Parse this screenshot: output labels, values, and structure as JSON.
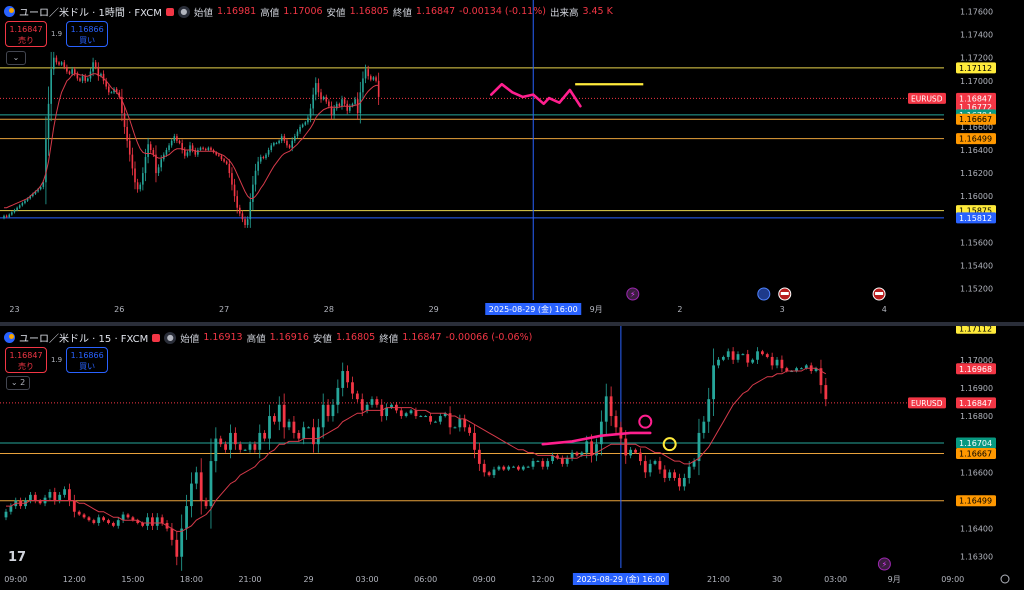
{
  "panes": [
    {
      "title": "ユーロ／米ドル · 1時間 · FXCM",
      "ohlc": {
        "open_label": "始値",
        "open": "1.16981",
        "high_label": "高値",
        "high": "1.17006",
        "low_label": "安値",
        "low": "1.16805",
        "close_label": "終値",
        "close": "1.16847",
        "change": "-0.00134 (-0.11%)",
        "volume_label": "出来高",
        "volume": "3.45 K"
      },
      "trade": {
        "sell_price": "1.16847",
        "sell_label": "売り",
        "spread": "1.9",
        "buy_price": "1.16866",
        "buy_label": "買い"
      },
      "collapse_label": "⌄"
    },
    {
      "title": "ユーロ／米ドル · 15 · FXCM",
      "ohlc": {
        "open_label": "始値",
        "open": "1.16913",
        "high_label": "高値",
        "high": "1.16916",
        "low_label": "安値",
        "low": "1.16805",
        "close_label": "終値",
        "close": "1.16847",
        "change": "-0.00066 (-0.06%)"
      },
      "trade": {
        "sell_price": "1.16847",
        "sell_label": "売り",
        "spread": "1.9",
        "buy_price": "1.16866",
        "buy_label": "買い"
      },
      "collapse_label": "⌄ 2"
    }
  ],
  "colors": {
    "up": "#26a69a",
    "down": "#f23645",
    "ma": "#d63a4a",
    "crosshair": "#2962ff",
    "drawing": "#ff1f8e",
    "yellow": "#ffeb3b",
    "bg": "#000000"
  },
  "tv_logo": "17",
  "chart_data": [
    {
      "type": "candlestick",
      "name": "EURUSD 1H",
      "ylim": [
        1.151,
        1.177
      ],
      "y_ticks": [
        "1.17600",
        "1.17400",
        "1.17200",
        "1.17000",
        "1.16800",
        "1.16600",
        "1.16400",
        "1.16200",
        "1.16000",
        "1.15800",
        "1.15600",
        "1.15400",
        "1.15200"
      ],
      "x_labels": [
        {
          "label": "23",
          "i": 4
        },
        {
          "label": "26",
          "i": 44
        },
        {
          "label": "27",
          "i": 84
        },
        {
          "label": "28",
          "i": 124
        },
        {
          "label": "29",
          "i": 164
        },
        {
          "label": "9月",
          "i": 226
        },
        {
          "label": "2",
          "i": 258
        },
        {
          "label": "3",
          "i": 297
        },
        {
          "label": "4",
          "i": 336
        }
      ],
      "crosshair_i": 202,
      "crosshair_label": "2025-08-29 (金)  16:00",
      "closes": [
        1.1583,
        1.1582,
        1.1584,
        1.1586,
        1.1588,
        1.159,
        1.1592,
        1.1594,
        1.1596,
        1.1598,
        1.16,
        1.1602,
        1.1604,
        1.1606,
        1.1608,
        1.1612,
        1.165,
        1.168,
        1.171,
        1.172,
        1.1716,
        1.1714,
        1.1716,
        1.1712,
        1.1708,
        1.1706,
        1.171,
        1.1706,
        1.1702,
        1.17,
        1.1704,
        1.17,
        1.1702,
        1.1708,
        1.1716,
        1.1712,
        1.1704,
        1.1706,
        1.17,
        1.1695,
        1.169,
        1.169,
        1.1693,
        1.169,
        1.1686,
        1.1672,
        1.166,
        1.1648,
        1.1636,
        1.1624,
        1.1612,
        1.1606,
        1.161,
        1.162,
        1.1634,
        1.1645,
        1.164,
        1.1636,
        1.162,
        1.1625,
        1.1632,
        1.1636,
        1.164,
        1.1644,
        1.1648,
        1.1652,
        1.1648,
        1.1646,
        1.164,
        1.1635,
        1.1638,
        1.1644,
        1.164,
        1.1636,
        1.164,
        1.1642,
        1.1641,
        1.164,
        1.1642,
        1.164,
        1.1638,
        1.1636,
        1.1635,
        1.1632,
        1.163,
        1.1628,
        1.162,
        1.161,
        1.16,
        1.159,
        1.1585,
        1.158,
        1.1575,
        1.158,
        1.1595,
        1.161,
        1.1622,
        1.163,
        1.1634,
        1.1633,
        1.1636,
        1.164,
        1.1644,
        1.1646,
        1.1646,
        1.1648,
        1.1652,
        1.1648,
        1.1644,
        1.1642,
        1.1648,
        1.1652,
        1.1656,
        1.166,
        1.1662,
        1.1664,
        1.1668,
        1.1676,
        1.1688,
        1.1698,
        1.169,
        1.1684,
        1.1686,
        1.1682,
        1.1678,
        1.167,
        1.1676,
        1.168,
        1.1678,
        1.1684,
        1.168,
        1.1674,
        1.1678,
        1.168,
        1.1684,
        1.1672,
        1.169,
        1.1702,
        1.171,
        1.1704,
        1.1701,
        1.1703,
        1.17,
        1.1686
      ],
      "ma": [
        1.159,
        1.159,
        1.1591,
        1.1592,
        1.1593,
        1.1594,
        1.1595,
        1.1596,
        1.1597,
        1.1598,
        1.16,
        1.1602,
        1.1604,
        1.1606,
        1.1609,
        1.1613,
        1.162,
        1.163,
        1.1645,
        1.166,
        1.1672,
        1.1682,
        1.169,
        1.1695,
        1.17,
        1.1702,
        1.1705,
        1.1706,
        1.1706,
        1.1705,
        1.1705,
        1.1704,
        1.1704,
        1.1705,
        1.1706,
        1.1706,
        1.1705,
        1.1704,
        1.1702,
        1.17,
        1.1697,
        1.1694,
        1.1692,
        1.169,
        1.1687,
        1.1683,
        1.1678,
        1.1672,
        1.1666,
        1.1659,
        1.1652,
        1.1646,
        1.1641,
        1.1638,
        1.1637,
        1.1637,
        1.1637,
        1.1636,
        1.1634,
        1.1633,
        1.1633,
        1.1634,
        1.1635,
        1.1636,
        1.1638,
        1.164,
        1.1641,
        1.1641,
        1.1641,
        1.164,
        1.164,
        1.164,
        1.164,
        1.1639,
        1.1639,
        1.1639,
        1.1639,
        1.1639,
        1.1639,
        1.1639,
        1.1639,
        1.1638,
        1.1637,
        1.1636,
        1.1635,
        1.1633,
        1.1631,
        1.1628,
        1.1624,
        1.1619,
        1.1614,
        1.1609,
        1.1604,
        1.16,
        1.1598,
        1.1598,
        1.16,
        1.1603,
        1.1607,
        1.161,
        1.1614,
        1.1618,
        1.1622,
        1.1626,
        1.1629,
        1.1632,
        1.1635,
        1.1637,
        1.1638,
        1.1639,
        1.1641,
        1.1643,
        1.1645,
        1.1648,
        1.165,
        1.1653,
        1.1656,
        1.1659,
        1.1663,
        1.1668,
        1.1671,
        1.1673,
        1.1675,
        1.1676,
        1.1677,
        1.1677,
        1.1677,
        1.1677,
        1.1677,
        1.1678,
        1.1678,
        1.1678,
        1.1678,
        1.1678,
        1.1679,
        1.1679,
        1.1681,
        1.1684,
        1.1688,
        1.1691,
        1.1693,
        1.1695,
        1.1696,
        1.1696
      ],
      "hlines": [
        {
          "y": 1.17112,
          "color": "#e8d44d",
          "label": "1.17112",
          "label_bg": "#ffeb3b",
          "label_fg": "#000000",
          "style": "solid"
        },
        {
          "y": 1.16847,
          "color": "#f23645",
          "label": "1.16847",
          "label_bg": "#f23645",
          "label_fg": "#ffffff",
          "style": "dotted",
          "tag": "EURUSD"
        },
        {
          "y": 1.16772,
          "color": "#f23645",
          "label": "1.16772",
          "label_bg": "#f23645",
          "label_fg": "#ffffff",
          "style": "none"
        },
        {
          "y": 1.16704,
          "color": "#26a69a",
          "label": "1.16704",
          "label_bg": "#089981",
          "label_fg": "#ffffff",
          "style": "solid"
        },
        {
          "y": 1.16667,
          "color": "#e8a23c",
          "label": "1.16667",
          "label_bg": "#ff9800",
          "label_fg": "#000000",
          "style": "solid"
        },
        {
          "y": 1.16499,
          "color": "#e8a23c",
          "label": "1.16499",
          "label_bg": "#ff9800",
          "label_fg": "#000000",
          "style": "solid"
        },
        {
          "y": 1.15875,
          "color": "#e8d44d",
          "label": "1.15875",
          "label_bg": "#ffeb3b",
          "label_fg": "#000000",
          "style": "solid"
        },
        {
          "y": 1.15812,
          "color": "#2962ff",
          "label": "1.15812",
          "label_bg": "#2962ff",
          "label_fg": "#ffffff",
          "style": "solid"
        }
      ],
      "drawing": [
        [
          186,
          1.1688
        ],
        [
          190,
          1.1697
        ],
        [
          194,
          1.169
        ],
        [
          198,
          1.1686
        ],
        [
          202,
          1.1688
        ],
        [
          206,
          1.168
        ],
        [
          208,
          1.1685
        ],
        [
          212,
          1.1681
        ],
        [
          216,
          1.1692
        ],
        [
          220,
          1.1678
        ]
      ],
      "yellow_segment": {
        "i0": 218,
        "i1": 244,
        "y": 1.1697
      },
      "events": [
        {
          "i": 240,
          "kind": "lightning"
        },
        {
          "i": 290,
          "kind": "globe"
        },
        {
          "i": 298,
          "kind": "flag"
        },
        {
          "i": 334,
          "kind": "flag"
        }
      ]
    },
    {
      "type": "candlestick",
      "name": "EURUSD 15",
      "ylim": [
        1.1626,
        1.1712
      ],
      "y_ticks": [
        "1.17000",
        "1.16900",
        "1.16800",
        "1.16700",
        "1.16600",
        "1.16500",
        "1.16400",
        "1.16300"
      ],
      "x_labels": [
        {
          "label": "09:00",
          "i": 2
        },
        {
          "label": "12:00",
          "i": 14
        },
        {
          "label": "15:00",
          "i": 26
        },
        {
          "label": "18:00",
          "i": 38
        },
        {
          "label": "21:00",
          "i": 50
        },
        {
          "label": "29",
          "i": 62
        },
        {
          "label": "03:00",
          "i": 74
        },
        {
          "label": "06:00",
          "i": 86
        },
        {
          "label": "09:00",
          "i": 98
        },
        {
          "label": "12:00",
          "i": 110
        },
        {
          "label": "21:00",
          "i": 146
        },
        {
          "label": "30",
          "i": 158
        },
        {
          "label": "03:00",
          "i": 170
        },
        {
          "label": "9月",
          "i": 182
        },
        {
          "label": "09:00",
          "i": 194
        }
      ],
      "crosshair_i": 126,
      "crosshair_label": "2025-08-29 (金)  16:00",
      "closes": [
        1.1646,
        1.1648,
        1.165,
        1.1648,
        1.165,
        1.1652,
        1.165,
        1.1649,
        1.1651,
        1.1653,
        1.165,
        1.1652,
        1.1654,
        1.165,
        1.1646,
        1.1645,
        1.1644,
        1.1643,
        1.1642,
        1.1644,
        1.1643,
        1.1642,
        1.1641,
        1.1643,
        1.1645,
        1.1644,
        1.1643,
        1.1642,
        1.1641,
        1.1644,
        1.1641,
        1.1644,
        1.1642,
        1.164,
        1.1636,
        1.163,
        1.164,
        1.1648,
        1.1656,
        1.166,
        1.165,
        1.1648,
        1.1664,
        1.1672,
        1.167,
        1.1668,
        1.1674,
        1.167,
        1.1668,
        1.1668,
        1.167,
        1.1668,
        1.1674,
        1.1672,
        1.168,
        1.1678,
        1.1684,
        1.1676,
        1.1678,
        1.1674,
        1.1672,
        1.1676,
        1.1676,
        1.167,
        1.1676,
        1.1684,
        1.168,
        1.1684,
        1.169,
        1.1696,
        1.1692,
        1.1688,
        1.1686,
        1.1682,
        1.1684,
        1.1686,
        1.1684,
        1.168,
        1.1683,
        1.1684,
        1.1682,
        1.168,
        1.1681,
        1.1682,
        1.168,
        1.168,
        1.168,
        1.1678,
        1.1678,
        1.168,
        1.1681,
        1.1676,
        1.1676,
        1.1679,
        1.1676,
        1.1674,
        1.1668,
        1.1663,
        1.166,
        1.1659,
        1.1661,
        1.1662,
        1.1661,
        1.1662,
        1.1662,
        1.1661,
        1.1662,
        1.1662,
        1.1664,
        1.1664,
        1.1662,
        1.1664,
        1.1666,
        1.1665,
        1.1663,
        1.1665,
        1.1667,
        1.1666,
        1.1667,
        1.1671,
        1.1666,
        1.167,
        1.1678,
        1.1687,
        1.168,
        1.1676,
        1.1672,
        1.1666,
        1.1668,
        1.1667,
        1.1664,
        1.166,
        1.1663,
        1.1664,
        1.1661,
        1.1658,
        1.166,
        1.1658,
        1.1655,
        1.1658,
        1.1662,
        1.1664,
        1.1674,
        1.1678,
        1.1686,
        1.1698,
        1.17,
        1.1701,
        1.1703,
        1.17,
        1.1702,
        1.1702,
        1.1699,
        1.17,
        1.1703,
        1.1702,
        1.1701,
        1.1698,
        1.17,
        1.1697,
        1.1696,
        1.1696,
        1.1697,
        1.1697,
        1.1698,
        1.1696,
        1.1697,
        1.1691,
        1.1686
      ],
      "ma": [
        1.1648,
        1.1648,
        1.1649,
        1.1649,
        1.1649,
        1.165,
        1.165,
        1.165,
        1.165,
        1.165,
        1.165,
        1.165,
        1.165,
        1.165,
        1.165,
        1.1649,
        1.1649,
        1.1648,
        1.1647,
        1.1646,
        1.1646,
        1.1645,
        1.1644,
        1.1644,
        1.1643,
        1.1643,
        1.1643,
        1.1643,
        1.1642,
        1.1642,
        1.1642,
        1.1642,
        1.1642,
        1.1641,
        1.164,
        1.1639,
        1.1639,
        1.164,
        1.1641,
        1.1643,
        1.1644,
        1.1645,
        1.1647,
        1.165,
        1.1652,
        1.1654,
        1.1656,
        1.1657,
        1.1659,
        1.166,
        1.1661,
        1.1662,
        1.1664,
        1.1665,
        1.1667,
        1.1668,
        1.167,
        1.167,
        1.1671,
        1.1671,
        1.1671,
        1.1672,
        1.1672,
        1.1672,
        1.1672,
        1.1673,
        1.1674,
        1.1675,
        1.1676,
        1.1678,
        1.1679,
        1.168,
        1.1681,
        1.1681,
        1.1682,
        1.1682,
        1.1682,
        1.1682,
        1.1683,
        1.1683,
        1.1683,
        1.1683,
        1.1683,
        1.1683,
        1.1682,
        1.1682,
        1.1682,
        1.1681,
        1.1681,
        1.1681,
        1.1681,
        1.168,
        1.168,
        1.1679,
        1.1679,
        1.1678,
        1.1677,
        1.1676,
        1.1675,
        1.1674,
        1.1673,
        1.1672,
        1.1671,
        1.167,
        1.1669,
        1.1668,
        1.1668,
        1.1667,
        1.1667,
        1.1666,
        1.1666,
        1.1666,
        1.1666,
        1.1665,
        1.1665,
        1.1665,
        1.1665,
        1.1665,
        1.1666,
        1.1666,
        1.1666,
        1.1667,
        1.1668,
        1.1669,
        1.167,
        1.167,
        1.167,
        1.167,
        1.167,
        1.167,
        1.1669,
        1.1669,
        1.1668,
        1.1667,
        1.1667,
        1.1666,
        1.1665,
        1.1664,
        1.1664,
        1.1663,
        1.1663,
        1.1664,
        1.1665,
        1.1667,
        1.1669,
        1.1672,
        1.1675,
        1.1678,
        1.1681,
        1.1684,
        1.1686,
        1.1688,
        1.1689,
        1.1691,
        1.1692,
        1.1693,
        1.1694,
        1.1694,
        1.1695,
        1.1695,
        1.1696,
        1.1696,
        1.1696,
        1.1696,
        1.1697,
        1.1697,
        1.1697,
        1.1696,
        1.1695
      ],
      "hlines": [
        {
          "y": 1.17112,
          "color": "#e8d44d",
          "label": "1.17112",
          "label_bg": "#ffeb3b",
          "label_fg": "#000000",
          "style": "none"
        },
        {
          "y": 1.16968,
          "color": "#f23645",
          "label": "1.16968",
          "label_bg": "#f23645",
          "label_fg": "#ffffff",
          "style": "none"
        },
        {
          "y": 1.16847,
          "color": "#f23645",
          "label": "1.16847",
          "label_bg": "#f23645",
          "label_fg": "#ffffff",
          "style": "dotted",
          "tag": "EURUSD"
        },
        {
          "y": 1.16704,
          "color": "#26a69a",
          "label": "1.16704",
          "label_bg": "#089981",
          "label_fg": "#ffffff",
          "style": "solid"
        },
        {
          "y": 1.16667,
          "color": "#e8a23c",
          "label": "1.16667",
          "label_bg": "#ff9800",
          "label_fg": "#000000",
          "style": "solid"
        },
        {
          "y": 1.16499,
          "color": "#e8a23c",
          "label": "1.16499",
          "label_bg": "#ff9800",
          "label_fg": "#000000",
          "style": "solid"
        }
      ],
      "drawing": [
        [
          110,
          1.167
        ],
        [
          116,
          1.1671
        ],
        [
          122,
          1.1673
        ],
        [
          128,
          1.1674
        ],
        [
          132,
          1.1674
        ]
      ],
      "circles": [
        {
          "i": 131,
          "y": 1.1678,
          "color": "#ff1f8e"
        },
        {
          "i": 136,
          "y": 1.167,
          "color": "#ffeb3b"
        }
      ],
      "events": [
        {
          "i": 180,
          "kind": "lightning"
        }
      ]
    }
  ]
}
